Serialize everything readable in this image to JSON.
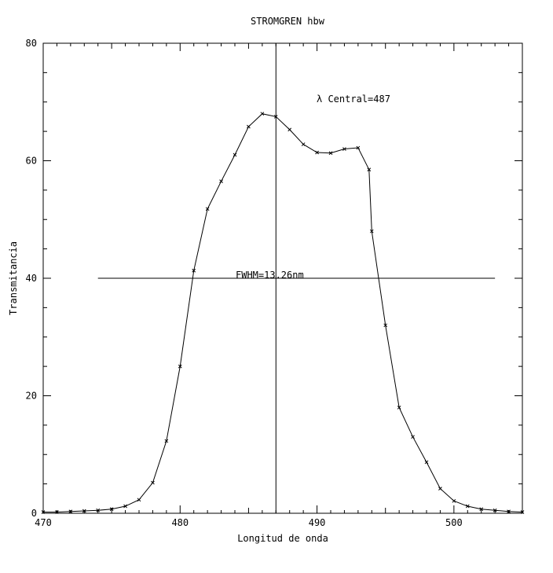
{
  "chart_data": {
    "type": "line",
    "title": "STROMGREN hbw",
    "xlabel": "Longitud de onda",
    "ylabel": "Transmitancia",
    "xlim": [
      470,
      505
    ],
    "ylim": [
      0,
      80
    ],
    "xticks": [
      "470",
      "480",
      "490",
      "500"
    ],
    "xtick_values": [
      470,
      480,
      490,
      500
    ],
    "yticks": [
      "0",
      "20",
      "40",
      "60",
      "80"
    ],
    "ytick_values": [
      0,
      20,
      40,
      60,
      80
    ],
    "grid": false,
    "series": [
      {
        "x": [
          470,
          471,
          472,
          473,
          474,
          475,
          476,
          477,
          478,
          479,
          480,
          481,
          482,
          483,
          484,
          485,
          486,
          487,
          488,
          489,
          490,
          491,
          492,
          493,
          493.8,
          494,
          495,
          496,
          497,
          498,
          499,
          500,
          501,
          502,
          503,
          504,
          505
        ],
        "y": [
          0.2,
          0.2,
          0.3,
          0.4,
          0.5,
          0.7,
          1.2,
          2.3,
          5.2,
          12.3,
          25.0,
          41.3,
          51.8,
          56.5,
          61.0,
          65.8,
          68.0,
          67.5,
          65.3,
          62.8,
          61.4,
          61.3,
          62.0,
          62.2,
          58.5,
          48.0,
          32.0,
          18.0,
          13.0,
          8.7,
          4.2,
          2.1,
          1.2,
          0.7,
          0.5,
          0.3,
          0.2
        ]
      }
    ],
    "annotations": {
      "central": {
        "label": "λ Central=487",
        "x": 487
      },
      "fwhm": {
        "label": "FWHM=13.26nm",
        "y": 40,
        "x_start": 474,
        "x_end": 503
      }
    }
  }
}
